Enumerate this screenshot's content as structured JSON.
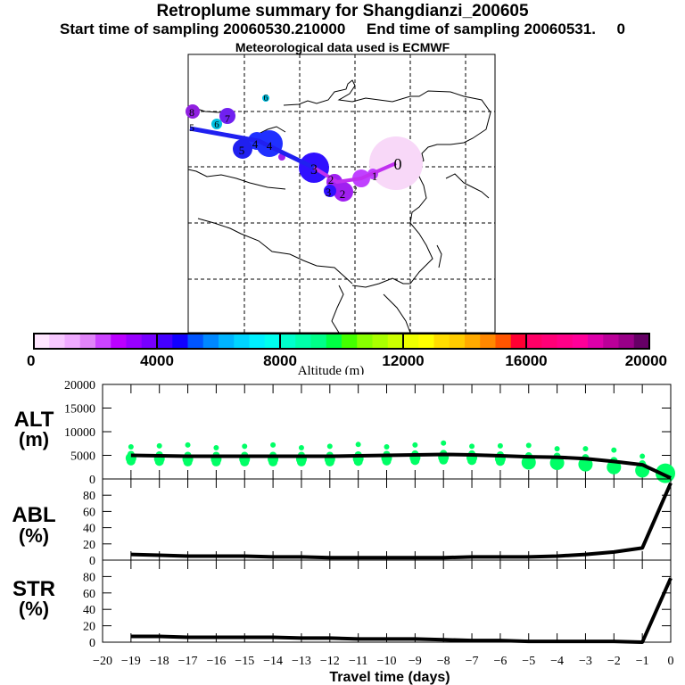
{
  "header": {
    "title": "Retroplume summary for Shangdianzi_200605",
    "sampling_line": "Start time of sampling 20060530.210000     End time of sampling 20060531.     0",
    "met_line": "Meteorological data used is ECMWF"
  },
  "map": {
    "description": "Retroplume trajectory map over East/Central Asia",
    "plume_points": [
      {
        "label": "0",
        "color": "#f8d8f8"
      },
      {
        "label": "1",
        "color": "#c040ff"
      },
      {
        "label": "2",
        "color": "#a020f0"
      },
      {
        "label": "3",
        "color": "#3010ff"
      },
      {
        "label": "4",
        "color": "#2030ff"
      },
      {
        "label": "5",
        "color": "#2020f0"
      },
      {
        "label": "6",
        "color": "#00c0e0"
      },
      {
        "label": "7",
        "color": "#7020f0"
      },
      {
        "label": "8",
        "color": "#9020e0"
      }
    ],
    "track_colors": [
      "#2020f0",
      "#c030f0"
    ]
  },
  "colorbar": {
    "label": "Altitude (m)",
    "ticks": [
      "0",
      "4000",
      "8000",
      "12000",
      "16000",
      "20000"
    ],
    "colors": [
      "#ffe6ff",
      "#f7c8ff",
      "#efaaff",
      "#e084f8",
      "#cc44ff",
      "#bb00ff",
      "#9900ff",
      "#7700ff",
      "#4400ff",
      "#1100ff",
      "#0055ff",
      "#0088ff",
      "#00b4ff",
      "#00d4ff",
      "#00f0ff",
      "#00ffee",
      "#00ffcc",
      "#00ffaa",
      "#00ff88",
      "#00ff44",
      "#44ff00",
      "#88ff00",
      "#aaff00",
      "#ccff00",
      "#eeff00",
      "#ffff00",
      "#ffdd00",
      "#ffcc00",
      "#ffaa00",
      "#ff8800",
      "#ff5500",
      "#ff0033",
      "#ff0066",
      "#ff0077",
      "#ff0088",
      "#ff0099",
      "#dd00aa",
      "#bb0099",
      "#990088",
      "#660066"
    ]
  },
  "chart_data": [
    {
      "type": "line",
      "panel": "ALT",
      "ylabel": "ALT (m)",
      "ylim": [
        0,
        20000
      ],
      "yticks": [
        "0",
        "5000",
        "10000",
        "15000",
        "20000"
      ],
      "x": [
        -19,
        -18,
        -17,
        -16,
        -15,
        -14,
        -13,
        -12,
        -11,
        -10,
        -9,
        -8,
        -7,
        -6,
        -5,
        -4,
        -3,
        -2,
        -1,
        0
      ],
      "values": [
        5000,
        4900,
        4800,
        4800,
        4800,
        4800,
        4800,
        4800,
        4900,
        5000,
        5100,
        5200,
        5100,
        4900,
        4700,
        4600,
        4300,
        3700,
        3000,
        200
      ],
      "scatter_color": "#00ff66",
      "scatter_note": "green cluster markers around mean altitude at each day (approx. 3500–8000 m)"
    },
    {
      "type": "line",
      "panel": "ABL",
      "ylabel": "ABL (%)",
      "ylim": [
        0,
        100
      ],
      "yticks": [
        "0",
        "20",
        "40",
        "60",
        "80"
      ],
      "x": [
        -19,
        -18,
        -17,
        -16,
        -15,
        -14,
        -13,
        -12,
        -11,
        -10,
        -9,
        -8,
        -7,
        -6,
        -5,
        -4,
        -3,
        -2,
        -1,
        0
      ],
      "values": [
        7,
        6,
        5,
        5,
        5,
        4,
        4,
        3,
        3,
        3,
        3,
        3,
        4,
        4,
        4,
        5,
        7,
        10,
        15,
        95
      ]
    },
    {
      "type": "line",
      "panel": "STR",
      "ylabel": "STR (%)",
      "ylim": [
        0,
        100
      ],
      "yticks": [
        "0",
        "20",
        "40",
        "60",
        "80"
      ],
      "x": [
        -19,
        -18,
        -17,
        -16,
        -15,
        -14,
        -13,
        -12,
        -11,
        -10,
        -9,
        -8,
        -7,
        -6,
        -5,
        -4,
        -3,
        -2,
        -1,
        0
      ],
      "values": [
        7,
        7,
        6,
        6,
        6,
        6,
        5,
        5,
        4,
        4,
        4,
        3,
        2,
        2,
        1,
        1,
        1,
        1,
        0,
        78
      ],
      "xlabel": "Travel time (days)",
      "xticks": [
        "-20",
        "-19",
        "-18",
        "-17",
        "-16",
        "-15",
        "-14",
        "-13",
        "-12",
        "-11",
        "-10",
        "-9",
        "-8",
        "-7",
        "-6",
        "-5",
        "-4",
        "-3",
        "-2",
        "-1",
        "0"
      ]
    }
  ],
  "panel_labels": {
    "alt": [
      "ALT",
      "(m)"
    ],
    "abl": [
      "ABL",
      "(%)"
    ],
    "str": [
      "STR",
      "(%)"
    ]
  }
}
